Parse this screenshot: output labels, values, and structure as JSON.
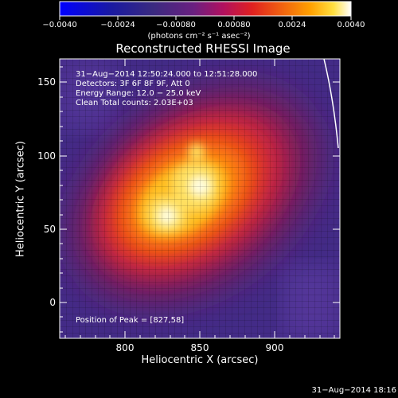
{
  "colorbar": {
    "ticks": [
      "−0.0040",
      "−0.0024",
      "−0.00080",
      "0.00080",
      "0.0024",
      "0.0040"
    ],
    "units": "(photons cm⁻² s⁻¹ asec⁻²)"
  },
  "image": {
    "title": "Reconstructed RHESSI Image",
    "info": {
      "time_range": "31−Aug−2014 12:50:24.000 to 12:51:28.000",
      "detectors": "Detectors: 3F 6F 8F 9F, Att 0",
      "energy": "Energy Range: 12.0 − 25.0 keV",
      "clean": "Clean     Total counts: 2.03E+03"
    },
    "peak": "Position of Peak = [827,58]"
  },
  "axes": {
    "x_label": "Heliocentric X (arcsec)",
    "y_label": "Heliocentric Y (arcsec)",
    "x_ticks": [
      "800",
      "850",
      "900"
    ],
    "y_ticks": [
      "150",
      "100",
      "50",
      "0"
    ],
    "x_range": [
      755,
      940
    ],
    "y_range": [
      -24,
      165
    ]
  },
  "footer": {
    "date": "31−Aug−2014 18:16"
  }
}
